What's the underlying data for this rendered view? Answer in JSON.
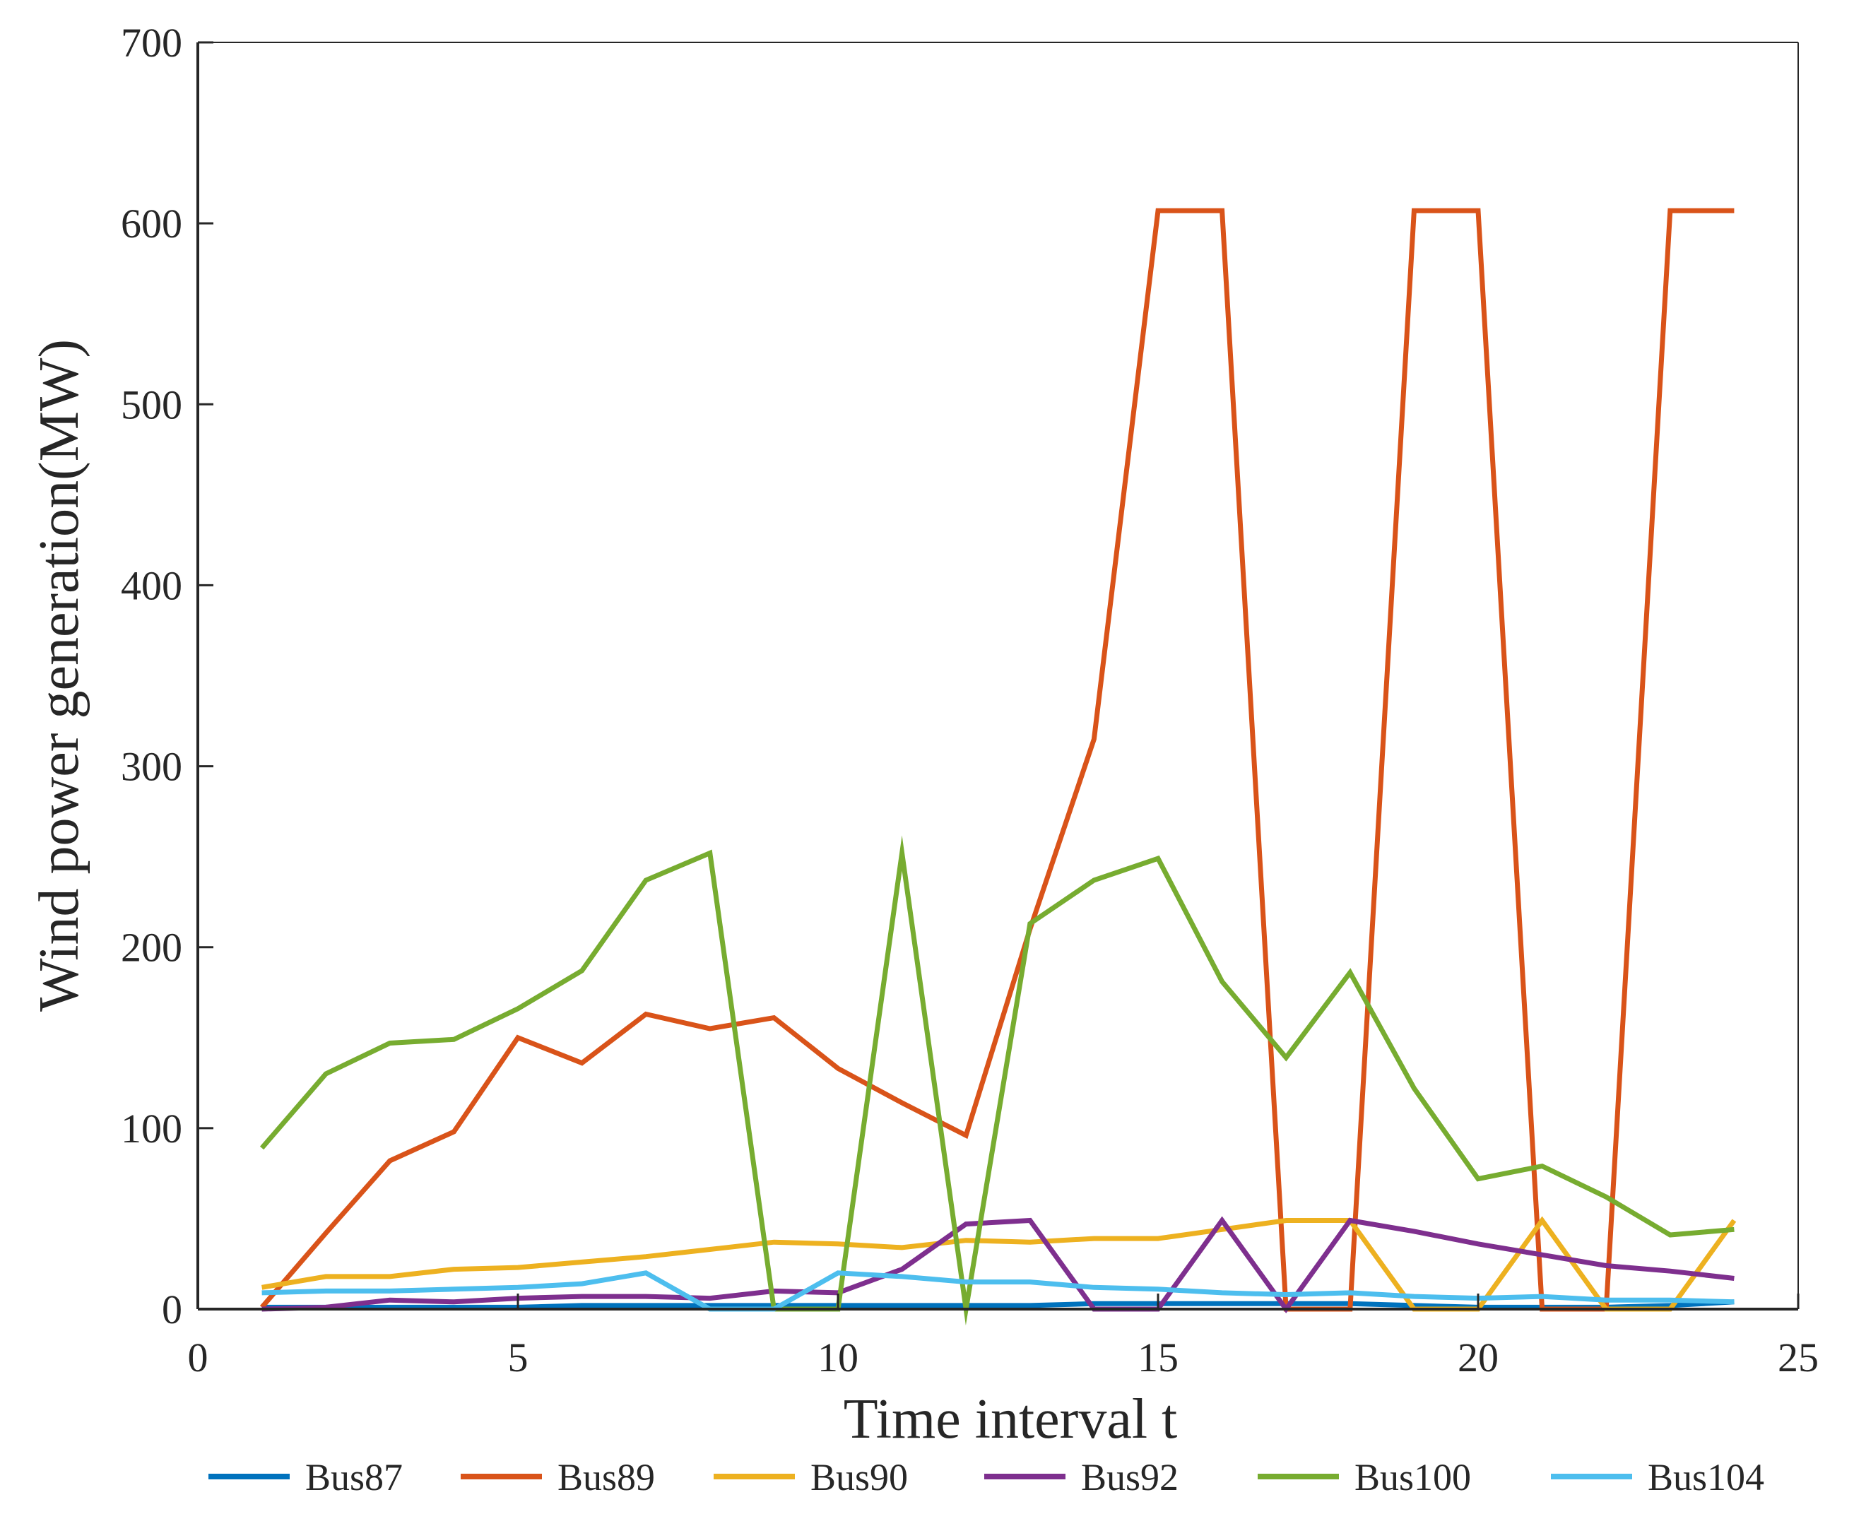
{
  "chart_data": {
    "type": "line",
    "title": "",
    "xlabel": "Time interval t",
    "ylabel": "Wind power generation(MW)",
    "xlim": [
      0,
      25
    ],
    "ylim": [
      0,
      700
    ],
    "xticks": [
      "0",
      "5",
      "10",
      "15",
      "20",
      "25"
    ],
    "yticks": [
      "0",
      "100",
      "200",
      "300",
      "400",
      "500",
      "600",
      "700"
    ],
    "grid": false,
    "legend_position": "bottom",
    "x": [
      1,
      2,
      3,
      4,
      5,
      6,
      7,
      8,
      9,
      10,
      11,
      12,
      13,
      14,
      15,
      16,
      17,
      18,
      19,
      20,
      21,
      22,
      23,
      24
    ],
    "series": [
      {
        "name": "Bus87",
        "color": "#0072BD",
        "values": [
          1,
          1,
          1,
          1,
          1,
          2,
          2,
          2,
          2,
          2,
          2,
          2,
          2,
          3,
          3,
          3,
          3,
          3,
          2,
          1,
          1,
          1,
          2,
          4
        ]
      },
      {
        "name": "Bus89",
        "color": "#D95319",
        "values": [
          1,
          42,
          82,
          98,
          150,
          136,
          163,
          155,
          161,
          133,
          114,
          96,
          210,
          315,
          607,
          607,
          0,
          0,
          607,
          607,
          0,
          0,
          607,
          607
        ]
      },
      {
        "name": "Bus90",
        "color": "#EDB120",
        "values": [
          12,
          18,
          18,
          22,
          23,
          26,
          29,
          33,
          37,
          36,
          34,
          38,
          37,
          39,
          39,
          44,
          49,
          49,
          0,
          0,
          49,
          0,
          0,
          49
        ]
      },
      {
        "name": "Bus92",
        "color": "#7E2F8E",
        "values": [
          0,
          1,
          5,
          4,
          6,
          7,
          7,
          6,
          10,
          9,
          22,
          47,
          49,
          0,
          0,
          49,
          0,
          49,
          43,
          36,
          30,
          24,
          21,
          17
        ]
      },
      {
        "name": "Bus100",
        "color": "#77AC30",
        "values": [
          89,
          130,
          147,
          149,
          166,
          187,
          237,
          252,
          0,
          0,
          252,
          0,
          213,
          237,
          249,
          181,
          139,
          186,
          122,
          72,
          79,
          62,
          41,
          44
        ]
      },
      {
        "name": "Bus104",
        "color": "#4DBEEE",
        "values": [
          9,
          10,
          10,
          11,
          12,
          14,
          20,
          0,
          0,
          20,
          18,
          15,
          15,
          12,
          11,
          9,
          8,
          9,
          7,
          6,
          7,
          5,
          5,
          4
        ]
      }
    ]
  }
}
